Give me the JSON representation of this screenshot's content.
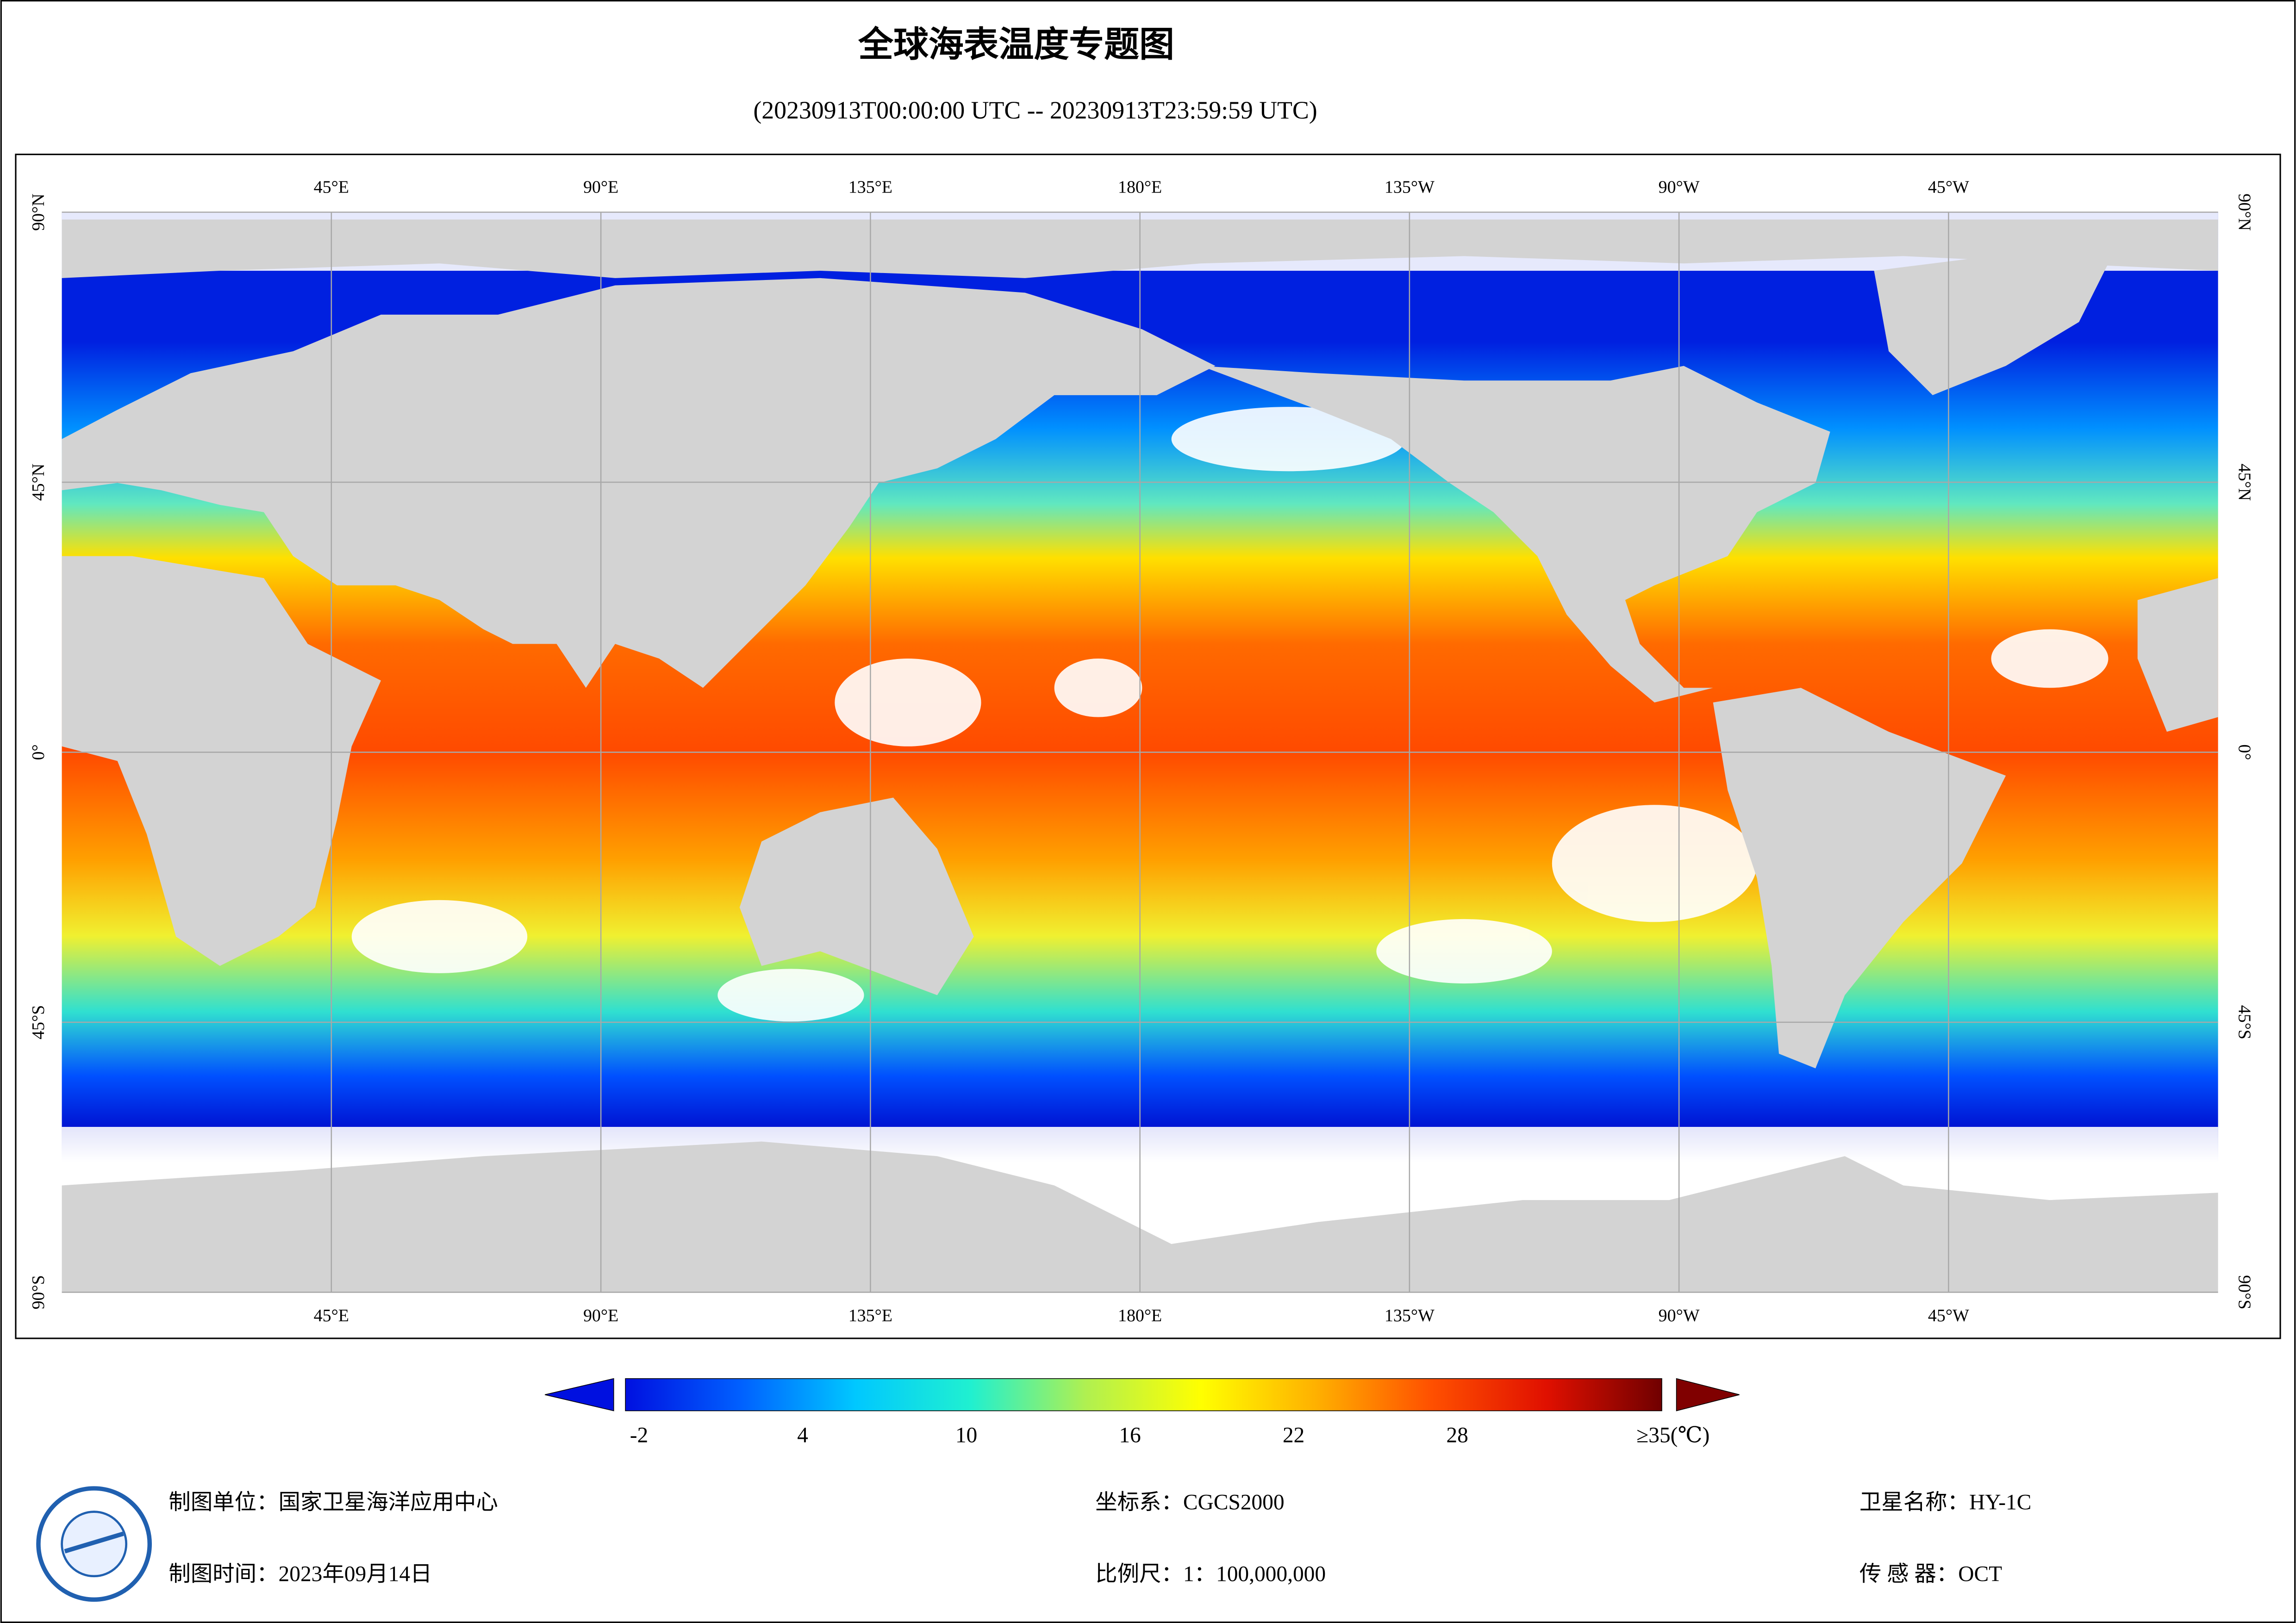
{
  "title": "全球海表温度专题图",
  "subtitle": "(20230913T00:00:00 UTC -- 20230913T23:59:59 UTC)",
  "map": {
    "lon_range": [
      0,
      360
    ],
    "lat_range": [
      -90,
      90
    ],
    "lon_ticks": [
      {
        "value": 45,
        "label": "45°E"
      },
      {
        "value": 90,
        "label": "90°E"
      },
      {
        "value": 135,
        "label": "135°E"
      },
      {
        "value": 180,
        "label": "180°E"
      },
      {
        "value": 225,
        "label": "135°W"
      },
      {
        "value": 270,
        "label": "90°W"
      },
      {
        "value": 315,
        "label": "45°W"
      }
    ],
    "lat_ticks": [
      {
        "value": 90,
        "label": "90°N"
      },
      {
        "value": 45,
        "label": "45°N"
      },
      {
        "value": 0,
        "label": "0°"
      },
      {
        "value": -45,
        "label": "45°S"
      },
      {
        "value": -90,
        "label": "90°S"
      }
    ],
    "grid": true
  },
  "colorbar": {
    "range": [
      -2.5,
      35.5
    ],
    "ticks": [
      -2,
      4,
      10,
      16,
      22,
      28,
      {
        "value": 35,
        "label": "≥35(℃)"
      }
    ],
    "colors": [
      "#0010e0",
      "#0060ff",
      "#00c8ff",
      "#20f0d0",
      "#b0f050",
      "#ffff00",
      "#ffb000",
      "#ff5000",
      "#e01000",
      "#700000"
    ],
    "under_color": "#0010e0",
    "over_color": "#800000"
  },
  "footer": {
    "unit": "制图单位：国家卫星海洋应用中心",
    "time": "制图时间：2023年09月14日",
    "crs": "坐标系：CGCS2000",
    "scale": "比例尺：1：100,000,000",
    "satellite": "卫星名称：HY-1C",
    "sensor": "传 感 器：OCT"
  }
}
